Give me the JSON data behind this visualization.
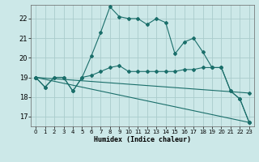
{
  "xlabel": "Humidex (Indice chaleur)",
  "bg_color": "#cce8e8",
  "line_color": "#1a6e6a",
  "grid_color": "#aacccc",
  "xlim": [
    -0.5,
    23.5
  ],
  "ylim": [
    16.5,
    22.7
  ],
  "yticks": [
    17,
    18,
    19,
    20,
    21,
    22
  ],
  "xticks": [
    0,
    1,
    2,
    3,
    4,
    5,
    6,
    7,
    8,
    9,
    10,
    11,
    12,
    13,
    14,
    15,
    16,
    17,
    18,
    19,
    20,
    21,
    22,
    23
  ],
  "line1_x": [
    0,
    1,
    2,
    3,
    4,
    5,
    6,
    7,
    8,
    9,
    10,
    11,
    12,
    13,
    14,
    15,
    16,
    17,
    18,
    19,
    20,
    21,
    22,
    23
  ],
  "line1_y": [
    19.0,
    18.5,
    19.0,
    19.0,
    18.3,
    19.0,
    20.1,
    21.3,
    22.6,
    22.1,
    22.0,
    22.0,
    21.7,
    22.0,
    21.8,
    20.2,
    20.8,
    21.0,
    20.3,
    19.5,
    19.5,
    18.3,
    17.9,
    16.7
  ],
  "line2_x": [
    0,
    1,
    2,
    3,
    4,
    5,
    6,
    7,
    8,
    9,
    10,
    11,
    12,
    13,
    14,
    15,
    16,
    17,
    18,
    19,
    20,
    21,
    22,
    23
  ],
  "line2_y": [
    19.0,
    18.5,
    19.0,
    19.0,
    18.3,
    19.0,
    19.1,
    19.3,
    19.5,
    19.6,
    19.3,
    19.3,
    19.3,
    19.3,
    19.3,
    19.3,
    19.4,
    19.4,
    19.5,
    19.5,
    19.5,
    18.3,
    17.9,
    16.7
  ],
  "line3_x": [
    0,
    23
  ],
  "line3_y": [
    19.0,
    18.2
  ],
  "line4_x": [
    0,
    23
  ],
  "line4_y": [
    19.0,
    16.7
  ]
}
